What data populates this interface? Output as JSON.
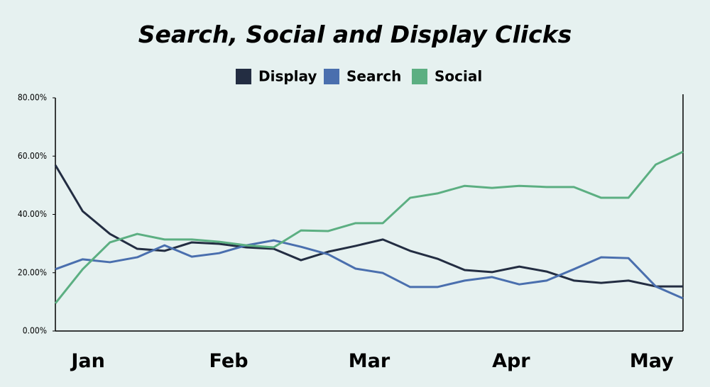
{
  "chart_data": {
    "type": "line",
    "title": "Search, Social and Display Clicks",
    "x": [
      0,
      1,
      2,
      3,
      4,
      5,
      6,
      7,
      8,
      9,
      10,
      11,
      12,
      13,
      14,
      15,
      16,
      17,
      18,
      19,
      20,
      21,
      22,
      23
    ],
    "xlim": [
      0,
      23
    ],
    "xticks": [
      {
        "value": 1.2,
        "label": "Jan"
      },
      {
        "value": 6.35,
        "label": "Feb"
      },
      {
        "value": 11.5,
        "label": "Mar"
      },
      {
        "value": 16.7,
        "label": "Apr"
      },
      {
        "value": 21.85,
        "label": "May"
      }
    ],
    "ylim": [
      0,
      80
    ],
    "yticks": [
      {
        "value": 0,
        "label": "0.00%"
      },
      {
        "value": 20,
        "label": "20.00%"
      },
      {
        "value": 40,
        "label": "40.00%"
      },
      {
        "value": 60,
        "label": "60.00%"
      },
      {
        "value": 80,
        "label": "80.00%"
      }
    ],
    "grid": false,
    "legend": "top",
    "series": [
      {
        "name": "Display",
        "color": "#232d42",
        "values": [
          56.9,
          41.1,
          33.3,
          28.2,
          27.5,
          30.4,
          29.9,
          28.7,
          28.2,
          24.3,
          27.2,
          29.2,
          31.4,
          27.5,
          24.8,
          20.9,
          20.2,
          22.1,
          20.4,
          17.3,
          16.5,
          17.3,
          15.3,
          15.3
        ]
      },
      {
        "name": "Search",
        "color": "#4a6fae",
        "values": [
          21.2,
          24.6,
          23.6,
          25.3,
          29.4,
          25.5,
          26.7,
          29.4,
          31.1,
          28.9,
          26.3,
          21.4,
          19.9,
          15.1,
          15.1,
          17.3,
          18.5,
          16.0,
          17.3,
          21.2,
          25.3,
          25.0,
          15.3,
          11.2
        ]
      },
      {
        "name": "Social",
        "color": "#5caf82",
        "values": [
          9.5,
          21.2,
          30.4,
          33.3,
          31.4,
          31.4,
          30.6,
          29.4,
          28.7,
          34.5,
          34.3,
          37.0,
          37.0,
          45.7,
          47.2,
          49.8,
          49.1,
          49.8,
          49.4,
          49.4,
          45.7,
          45.7,
          57.1,
          61.5
        ]
      }
    ]
  }
}
